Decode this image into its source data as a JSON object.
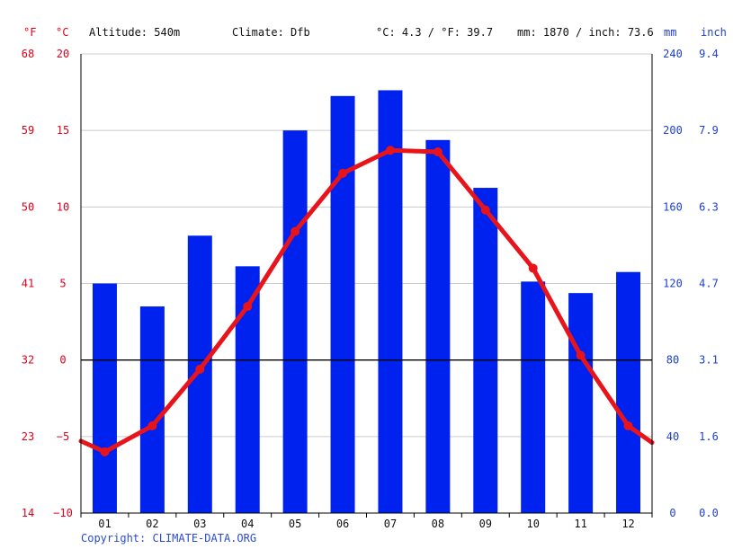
{
  "header": {
    "unit_f": "°F",
    "unit_c": "°C",
    "altitude": "Altitude: 540m",
    "climate": "Climate: Dfb",
    "avg_temp": "°C: 4.3 / °F: 39.7",
    "precip_total": "mm: 1870 / inch: 73.6",
    "unit_mm": "mm",
    "unit_inch": "inch"
  },
  "footer": {
    "copyright": "Copyright: CLIMATE-DATA.ORG"
  },
  "colors": {
    "temperature": "#e8141b",
    "precipitation": "#0022ee",
    "axis_red": "#e0001b",
    "axis_blue": "#1d3fd6",
    "grid": "#cccccc",
    "zero_line": "#000000"
  },
  "chart_data": {
    "type": "bar+line",
    "categories": [
      "01",
      "02",
      "03",
      "04",
      "05",
      "06",
      "07",
      "08",
      "09",
      "10",
      "11",
      "12"
    ],
    "series": [
      {
        "type": "bar",
        "axis": "right",
        "values": [
          120,
          108,
          145,
          129,
          200,
          218,
          221,
          195,
          170,
          121,
          115,
          126
        ]
      },
      {
        "type": "line",
        "axis": "left",
        "values": [
          -6.0,
          -4.3,
          -0.6,
          3.5,
          8.4,
          12.2,
          13.7,
          13.6,
          9.8,
          6.0,
          0.3,
          -4.3
        ]
      }
    ],
    "temp_edge_values": {
      "left": -5.3,
      "right": -5.4
    },
    "y_left": {
      "range": [
        -10,
        20
      ],
      "ticks_c": [
        "20",
        "15",
        "10",
        "5",
        "0",
        "−5",
        "−10"
      ],
      "ticks_f": [
        "68",
        "59",
        "50",
        "41",
        "32",
        "23",
        "14"
      ]
    },
    "y_right": {
      "range": [
        0,
        240
      ],
      "ticks_mm": [
        "240",
        "200",
        "160",
        "120",
        "80",
        "40",
        "0"
      ],
      "ticks_inch": [
        "9.4",
        "7.9",
        "6.3",
        "4.7",
        "3.1",
        "1.6",
        "0.0"
      ]
    },
    "grid": true,
    "zero_line": true
  }
}
